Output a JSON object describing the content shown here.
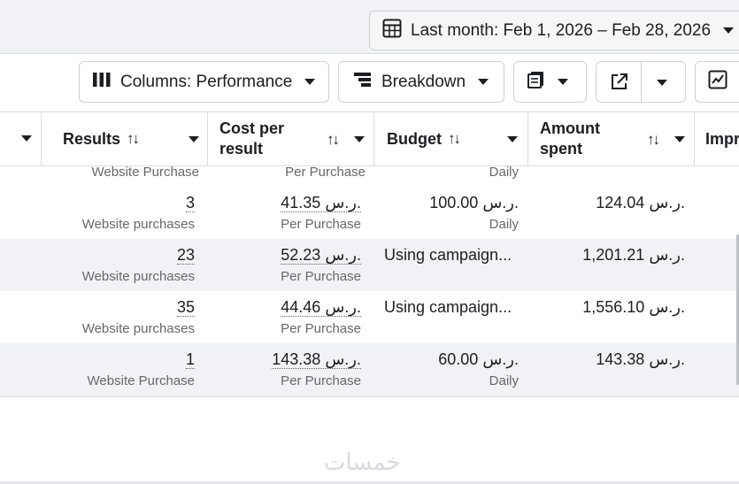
{
  "date_range": {
    "label": "Last month: Feb 1, 2026 – Feb 28, 2026"
  },
  "toolbar": {
    "columns_label": "Columns: Performance",
    "breakdown_label": "Breakdown"
  },
  "headers": {
    "results": "Results",
    "cost_per_result_line1": "Cost per",
    "cost_per_result_line2": "result",
    "budget": "Budget",
    "amount_spent_line1": "Amount",
    "amount_spent_line2": "spent",
    "impressions_partial": "Impr",
    "sort_glyph": "↑↓"
  },
  "partial_row": {
    "results_sub": "Website Purchase",
    "cost_sub": "Per Purchase",
    "budget_sub": "Daily"
  },
  "rows": [
    {
      "results": "3",
      "results_sub": "Website purchases",
      "cost": "41.35 ر.س.",
      "cost_sub": "Per Purchase",
      "budget": "100.00 ر.س.",
      "budget_sub": "Daily",
      "amount": "124.04 ر.س."
    },
    {
      "results": "23",
      "results_sub": "Website purchases",
      "cost": "52.23 ر.س.",
      "cost_sub": "Per Purchase",
      "budget": "Using campaign...",
      "budget_sub": "",
      "amount": "1,201.21 ر.س."
    },
    {
      "results": "35",
      "results_sub": "Website purchases",
      "cost": "44.46 ر.س.",
      "cost_sub": "Per Purchase",
      "budget": "Using campaign...",
      "budget_sub": "",
      "amount": "1,556.10 ر.س."
    },
    {
      "results": "1",
      "results_sub": "Website Purchase",
      "cost": "143.38 ر.س.",
      "cost_sub": "Per Purchase",
      "budget": "60.00 ر.س.",
      "budget_sub": "Daily",
      "amount": "143.38 ر.س."
    }
  ],
  "watermark": "خمسات",
  "icons": [
    "calendar-table-icon",
    "columns-icon",
    "breakdown-icon",
    "reports-icon",
    "export-icon",
    "trend-chart-icon",
    "sort-icon",
    "caret-down-icon"
  ]
}
